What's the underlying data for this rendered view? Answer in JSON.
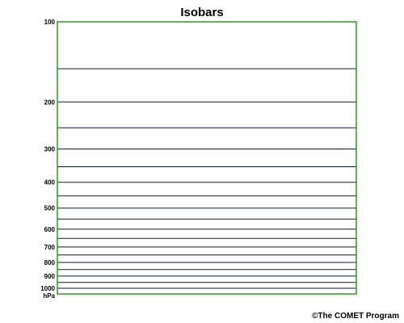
{
  "title": "Isobars",
  "unit_label": "hPa",
  "credit": "©The COMET Program",
  "colors": {
    "frame": "#2e9a1e",
    "isobar": "#0a1a3a",
    "text": "#000000"
  },
  "diagram": {
    "pressure_top": 100,
    "pressure_bottom": 1050,
    "scale": "log",
    "isobars": [
      150,
      200,
      250,
      300,
      350,
      400,
      450,
      500,
      550,
      600,
      650,
      700,
      750,
      800,
      850,
      900,
      950,
      1000
    ],
    "labeled_levels": [
      100,
      200,
      300,
      400,
      500,
      600,
      700,
      800,
      900,
      1000
    ]
  }
}
